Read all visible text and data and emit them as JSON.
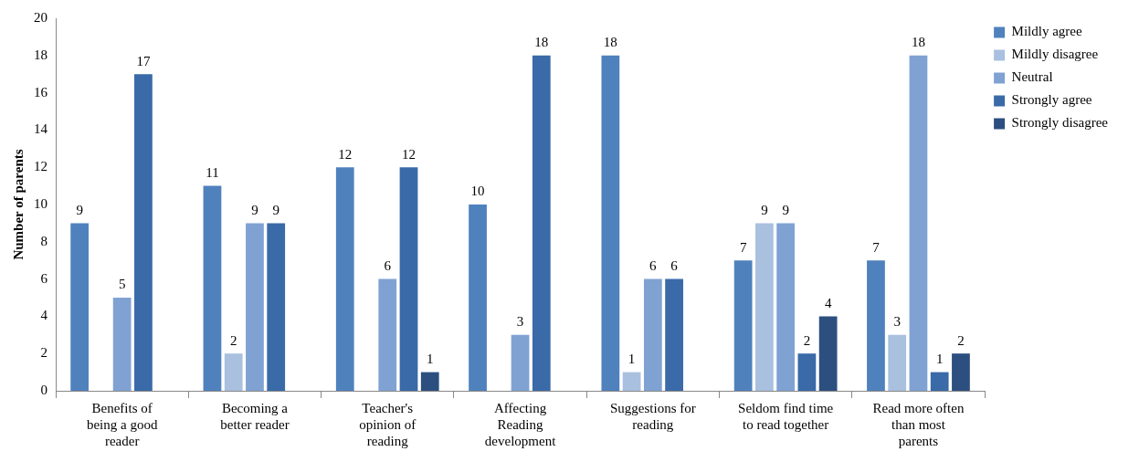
{
  "chart_data": {
    "type": "bar",
    "ylabel": "Number of parents",
    "categories": [
      "Benefits of being a good reader",
      "Becoming a better reader",
      "Teacher's opinion of reading",
      "Affecting Reading development",
      "Suggestions for reading",
      "Seldom find time to read together",
      "Read more often than most parents"
    ],
    "series": [
      {
        "name": "Mildly agree",
        "color": "#4f81bd",
        "values": [
          9,
          11,
          12,
          10,
          18,
          7,
          7
        ]
      },
      {
        "name": "Mildly disagree",
        "color": "#a9c0df",
        "values": [
          null,
          2,
          null,
          null,
          1,
          9,
          3
        ]
      },
      {
        "name": "Neutral",
        "color": "#7fa2d3",
        "values": [
          5,
          9,
          6,
          3,
          6,
          9,
          18
        ]
      },
      {
        "name": "Strongly agree",
        "color": "#3a6aa8",
        "values": [
          17,
          9,
          12,
          18,
          6,
          2,
          1
        ]
      },
      {
        "name": "Strongly disagree",
        "color": "#2c4f80",
        "values": [
          null,
          null,
          1,
          null,
          null,
          4,
          2
        ]
      }
    ],
    "ylim": [
      0,
      20
    ],
    "yticks": [
      0,
      2,
      4,
      6,
      8,
      10,
      12,
      14,
      16,
      18,
      20
    ],
    "grid": false,
    "legend": "right",
    "data_labels": true
  }
}
